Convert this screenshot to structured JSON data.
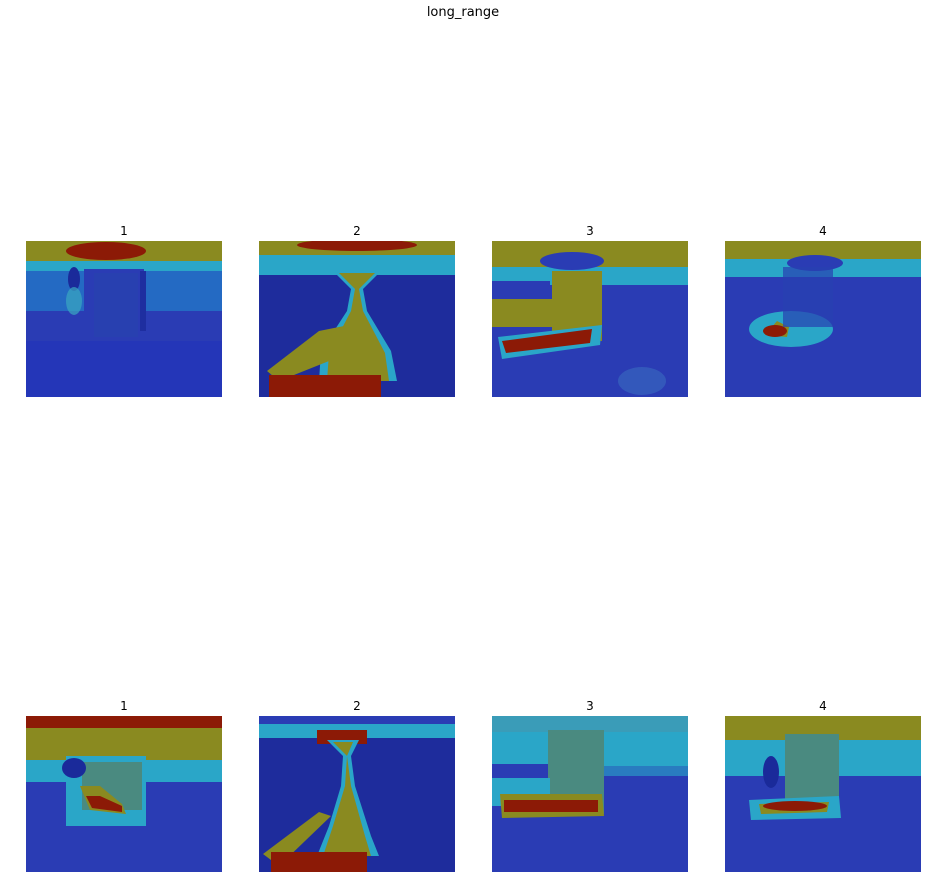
{
  "figure": {
    "suptitle": "long_range"
  },
  "chart_data": {
    "type": "heatmap",
    "title": "long_range",
    "colormap": "jet",
    "colors": {
      "low": "#2038b8",
      "mid": "#2aa6c8",
      "high": "#8a8a20",
      "peak": "#8c1a06"
    },
    "panels": [
      {
        "row": 1,
        "title": "1",
        "grid": "off",
        "axes": "off"
      },
      {
        "row": 1,
        "title": "2",
        "grid": "off",
        "axes": "off"
      },
      {
        "row": 1,
        "title": "3",
        "grid": "off",
        "axes": "off"
      },
      {
        "row": 1,
        "title": "4",
        "grid": "off",
        "axes": "off"
      },
      {
        "row": 2,
        "title": "1",
        "grid": "off",
        "axes": "off"
      },
      {
        "row": 2,
        "title": "2",
        "grid": "off",
        "axes": "off"
      },
      {
        "row": 2,
        "title": "3",
        "grid": "off",
        "axes": "off"
      },
      {
        "row": 2,
        "title": "4",
        "grid": "off",
        "axes": "off"
      }
    ]
  }
}
